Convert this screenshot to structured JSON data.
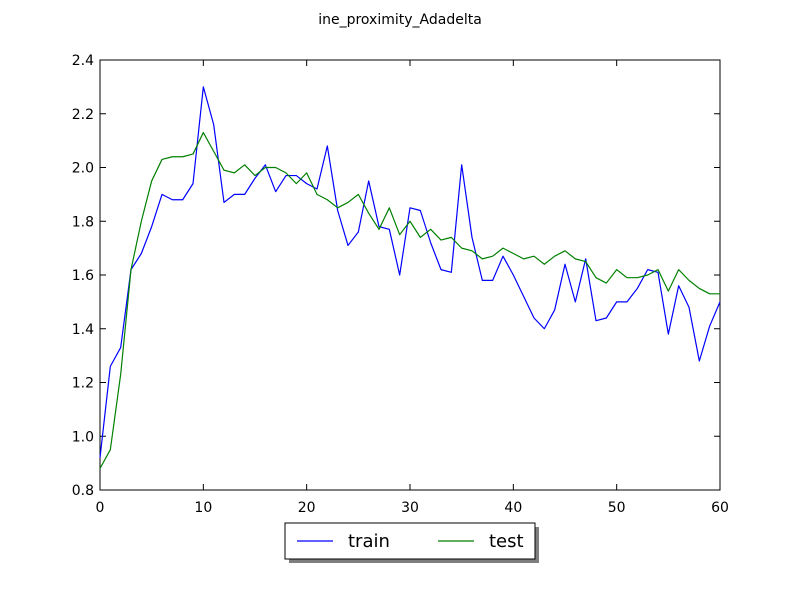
{
  "chart_data": {
    "type": "line",
    "title": "ine_proximity_Adadelta",
    "xlabel": "",
    "ylabel": "",
    "xlim": [
      0,
      60
    ],
    "ylim": [
      0.8,
      2.4
    ],
    "xticks": [
      0,
      10,
      20,
      30,
      40,
      50,
      60
    ],
    "xtick_labels": [
      "0",
      "10",
      "20",
      "30",
      "40",
      "50",
      "60"
    ],
    "yticks": [
      0.8,
      1.0,
      1.2,
      1.4,
      1.6,
      1.8,
      2.0,
      2.2,
      2.4
    ],
    "ytick_labels": [
      "0.8",
      "1.0",
      "1.2",
      "1.4",
      "1.6",
      "1.8",
      "2.0",
      "2.2",
      "2.4"
    ],
    "grid": false,
    "legend_position": "bottom-center, below plot",
    "x": [
      0,
      1,
      2,
      3,
      4,
      5,
      6,
      7,
      8,
      9,
      10,
      11,
      12,
      13,
      14,
      15,
      16,
      17,
      18,
      19,
      20,
      21,
      22,
      23,
      24,
      25,
      26,
      27,
      28,
      29,
      30,
      31,
      32,
      33,
      34,
      35,
      36,
      37,
      38,
      39,
      40,
      41,
      42,
      43,
      44,
      45,
      46,
      47,
      48,
      49,
      50,
      51,
      52,
      53,
      54,
      55,
      56,
      57,
      58,
      59,
      60
    ],
    "series": [
      {
        "name": "train",
        "color": "#0000ff",
        "values": [
          0.92,
          1.26,
          1.33,
          1.62,
          1.68,
          1.78,
          1.9,
          1.88,
          1.88,
          1.94,
          2.3,
          2.16,
          1.87,
          1.9,
          1.9,
          1.96,
          2.01,
          1.91,
          1.97,
          1.97,
          1.94,
          1.92,
          2.08,
          1.84,
          1.71,
          1.76,
          1.95,
          1.78,
          1.77,
          1.6,
          1.85,
          1.84,
          1.72,
          1.62,
          1.61,
          2.01,
          1.74,
          1.58,
          1.58,
          1.67,
          1.6,
          1.52,
          1.44,
          1.4,
          1.47,
          1.64,
          1.5,
          1.66,
          1.43,
          1.44,
          1.5,
          1.5,
          1.55,
          1.62,
          1.61,
          1.38,
          1.56,
          1.48,
          1.28,
          1.41,
          1.5
        ]
      },
      {
        "name": "test",
        "color": "#008000",
        "values": [
          0.88,
          0.95,
          1.23,
          1.62,
          1.8,
          1.95,
          2.03,
          2.04,
          2.04,
          2.05,
          2.13,
          2.06,
          1.99,
          1.98,
          2.01,
          1.97,
          2.0,
          2.0,
          1.98,
          1.94,
          1.98,
          1.9,
          1.88,
          1.85,
          1.87,
          1.9,
          1.83,
          1.77,
          1.85,
          1.75,
          1.8,
          1.74,
          1.77,
          1.73,
          1.74,
          1.7,
          1.69,
          1.66,
          1.67,
          1.7,
          1.68,
          1.66,
          1.67,
          1.64,
          1.67,
          1.69,
          1.66,
          1.65,
          1.59,
          1.57,
          1.62,
          1.59,
          1.59,
          1.6,
          1.62,
          1.54,
          1.62,
          1.58,
          1.55,
          1.53,
          1.53
        ]
      }
    ]
  }
}
